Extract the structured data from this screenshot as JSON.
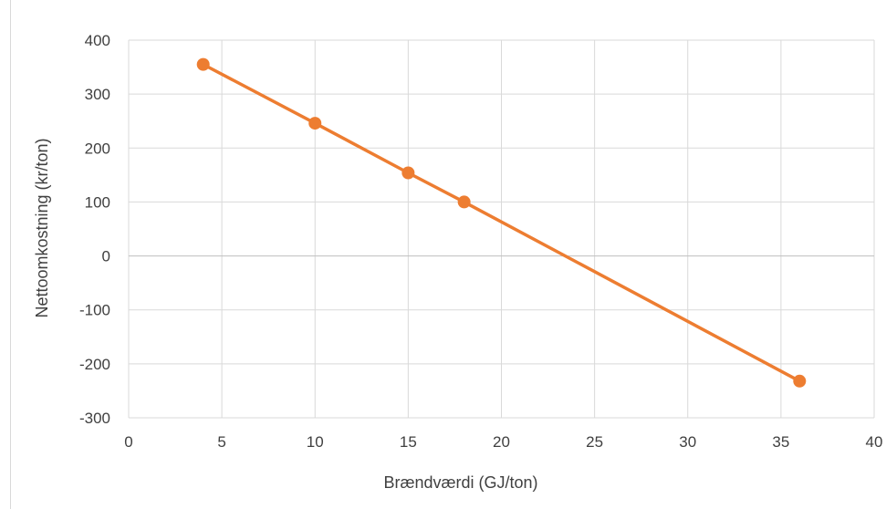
{
  "chart_data": {
    "type": "scatter",
    "title": "",
    "xlabel": "Brændværdi (GJ/ton)",
    "ylabel": "Nettoomkostning (kr/ton)",
    "xlim": [
      0,
      40
    ],
    "ylim": [
      -300,
      400
    ],
    "x_ticks": [
      0,
      5,
      10,
      15,
      20,
      25,
      30,
      35,
      40
    ],
    "y_ticks": [
      -300,
      -200,
      -100,
      0,
      100,
      200,
      300,
      400
    ],
    "grid": true,
    "legend": "none",
    "series": [
      {
        "x": [
          4,
          10,
          15,
          18,
          36
        ],
        "y": [
          355,
          246,
          154,
          100,
          -232
        ],
        "color": "#ed7d31",
        "line": true,
        "markers": true
      }
    ],
    "colors": {
      "grid": "#d9d9d9",
      "axis": "#bfbfbf",
      "text": "#404040"
    }
  }
}
